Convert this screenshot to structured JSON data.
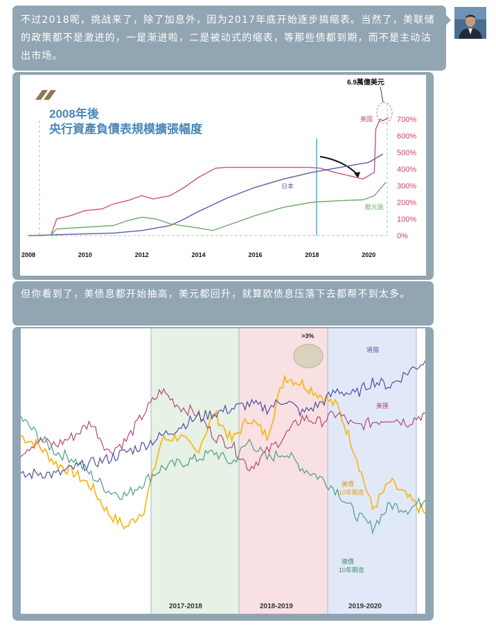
{
  "message1": "不过2018呢，挑战来了，除了加息外，因为2017年底开始逐步搞缩表。当然了，美联储的政策都不是激进的，一是渐进啦，二是被动式的缩表，等那些债都到期，而不是主动沽出市场。",
  "message2": "但你看到了，美债息都开始抽高，美元都回升，就算欧债息压落下去都帮不到太多。",
  "colors": {
    "bubble": "#91a5b2",
    "us": "#cc4f86",
    "japan": "#5a5aa8",
    "euro": "#6aaa64",
    "marker": "#41b6d3",
    "yield_us": "#f5b820",
    "yield_de": "#4b9a84",
    "dollar": "#b04878"
  },
  "chart_data": [
    {
      "type": "line",
      "title": "2008年後\n央行資產負債表規模擴張幅度",
      "title_line1": "2008年後",
      "title_line2": "央行資產負債表規模擴張幅度",
      "x": [
        2008,
        2010,
        2012,
        2014,
        2016,
        2018,
        2020
      ],
      "xlim": [
        2008,
        2020.8
      ],
      "y_ticks": [
        "700%",
        "600%",
        "500%",
        "400%",
        "300%",
        "200%",
        "100%",
        "0%"
      ],
      "ylim": [
        0,
        750
      ],
      "annotation": "6.9萬億美元",
      "series": [
        {
          "name": "美國",
          "x": [
            2008,
            2008.5,
            2008.8,
            2009,
            2009.5,
            2010,
            2010.6,
            2011,
            2011.5,
            2012,
            2012.4,
            2013,
            2013.5,
            2014,
            2014.6,
            2015,
            2016,
            2017,
            2017.9,
            2018.3,
            2018.8,
            2019.3,
            2019.8,
            2020.2,
            2020.25,
            2020.4,
            2020.5,
            2020.7
          ],
          "values": [
            0,
            0,
            5,
            100,
            120,
            150,
            160,
            190,
            210,
            240,
            220,
            240,
            290,
            350,
            405,
            410,
            410,
            410,
            410,
            405,
            380,
            360,
            340,
            380,
            640,
            700,
            690,
            710
          ]
        },
        {
          "name": "日本",
          "x": [
            2008,
            2009,
            2010,
            2011,
            2012,
            2013,
            2013.5,
            2014,
            2015,
            2016,
            2017,
            2018,
            2019,
            2020,
            2020.5
          ],
          "values": [
            0,
            5,
            10,
            15,
            30,
            60,
            100,
            145,
            225,
            290,
            340,
            380,
            410,
            440,
            490
          ]
        },
        {
          "name": "歐元區",
          "x": [
            2008,
            2008.8,
            2009,
            2010,
            2011,
            2011.5,
            2012,
            2012.5,
            2013,
            2014,
            2014.5,
            2015,
            2016,
            2017,
            2018,
            2019,
            2019.8,
            2020.2,
            2020.6
          ],
          "values": [
            0,
            5,
            40,
            50,
            60,
            90,
            110,
            100,
            70,
            45,
            30,
            60,
            120,
            170,
            200,
            210,
            215,
            240,
            320
          ]
        }
      ]
    },
    {
      "type": "line",
      "periods": [
        "2017-2018",
        "2018-2019",
        "2019-2020"
      ],
      "annotation": ">3%",
      "series": [
        {
          "name": "美債\n10年期息",
          "label_line1": "美債",
          "label_line2": "10年期息",
          "values": [
            0.62,
            0.58,
            0.5,
            0.46,
            0.4,
            0.28,
            0.22,
            0.3,
            0.6,
            0.62,
            0.55,
            0.72,
            0.6,
            0.7,
            0.62,
            0.88,
            0.85,
            0.8,
            0.75,
            0.55,
            0.3,
            0.42,
            0.35,
            0.28
          ]
        },
        {
          "name": "德債\n10年期息",
          "label_line1": "德債",
          "label_line2": "10年期息",
          "values": [
            0.7,
            0.62,
            0.55,
            0.52,
            0.45,
            0.38,
            0.36,
            0.42,
            0.48,
            0.5,
            0.52,
            0.55,
            0.5,
            0.6,
            0.52,
            0.55,
            0.48,
            0.44,
            0.38,
            0.28,
            0.22,
            0.32,
            0.3,
            0.34
          ]
        },
        {
          "name": "美匯",
          "label_line1": "美匯",
          "values": [
            0.55,
            0.6,
            0.58,
            0.62,
            0.68,
            0.55,
            0.6,
            0.72,
            0.82,
            0.75,
            0.72,
            0.62,
            0.58,
            0.48,
            0.55,
            0.62,
            0.7,
            0.68,
            0.72,
            0.66,
            0.68,
            0.7,
            0.68,
            0.72
          ]
        },
        {
          "name": "道指",
          "label_line1": "道指",
          "values": [
            0.44,
            0.46,
            0.45,
            0.48,
            0.5,
            0.52,
            0.55,
            0.58,
            0.62,
            0.66,
            0.7,
            0.72,
            0.74,
            0.76,
            0.74,
            0.78,
            0.72,
            0.76,
            0.82,
            0.8,
            0.86,
            0.84,
            0.9,
            0.95
          ]
        }
      ]
    }
  ]
}
